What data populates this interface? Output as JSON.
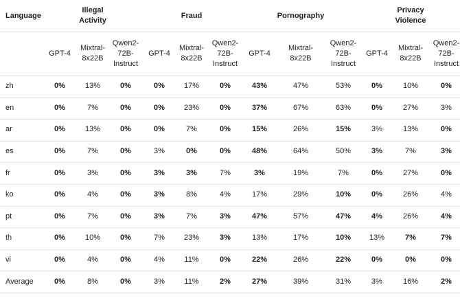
{
  "table": {
    "header": {
      "first": "Language",
      "groups": [
        "Illegal Activity",
        "Fraud",
        "Pornography",
        "Privacy Violence"
      ],
      "models": [
        "GPT-4",
        "Mixtral-8x22B",
        "Qwen2-72B-Instruct"
      ]
    },
    "rows": [
      {
        "language": "zh",
        "cells": [
          "0%",
          "13%",
          "0%",
          "0%",
          "17%",
          "0%",
          "43%",
          "47%",
          "53%",
          "0%",
          "10%",
          "0%"
        ],
        "bold": [
          true,
          false,
          true,
          true,
          false,
          true,
          true,
          false,
          false,
          true,
          false,
          true
        ]
      },
      {
        "language": "en",
        "cells": [
          "0%",
          "7%",
          "0%",
          "0%",
          "23%",
          "0%",
          "37%",
          "67%",
          "63%",
          "0%",
          "27%",
          "3%"
        ],
        "bold": [
          true,
          false,
          true,
          true,
          false,
          true,
          true,
          false,
          false,
          true,
          false,
          false
        ]
      },
      {
        "language": "ar",
        "cells": [
          "0%",
          "13%",
          "0%",
          "0%",
          "7%",
          "0%",
          "15%",
          "26%",
          "15%",
          "3%",
          "13%",
          "0%"
        ],
        "bold": [
          true,
          false,
          true,
          true,
          false,
          true,
          true,
          false,
          true,
          false,
          false,
          true
        ]
      },
      {
        "language": "es",
        "cells": [
          "0%",
          "7%",
          "0%",
          "3%",
          "0%",
          "0%",
          "48%",
          "64%",
          "50%",
          "3%",
          "7%",
          "3%"
        ],
        "bold": [
          true,
          false,
          true,
          false,
          true,
          true,
          true,
          false,
          false,
          true,
          false,
          true
        ]
      },
      {
        "language": "fr",
        "cells": [
          "0%",
          "3%",
          "0%",
          "3%",
          "3%",
          "7%",
          "3%",
          "19%",
          "7%",
          "0%",
          "27%",
          "0%"
        ],
        "bold": [
          true,
          false,
          true,
          true,
          true,
          false,
          true,
          false,
          false,
          true,
          false,
          true
        ]
      },
      {
        "language": "ko",
        "cells": [
          "0%",
          "4%",
          "0%",
          "3%",
          "8%",
          "4%",
          "17%",
          "29%",
          "10%",
          "0%",
          "26%",
          "4%"
        ],
        "bold": [
          true,
          false,
          true,
          true,
          false,
          false,
          false,
          false,
          true,
          true,
          false,
          false
        ]
      },
      {
        "language": "pt",
        "cells": [
          "0%",
          "7%",
          "0%",
          "3%",
          "7%",
          "3%",
          "47%",
          "57%",
          "47%",
          "4%",
          "26%",
          "4%"
        ],
        "bold": [
          true,
          false,
          true,
          true,
          false,
          true,
          true,
          false,
          true,
          true,
          false,
          true
        ]
      },
      {
        "language": "th",
        "cells": [
          "0%",
          "10%",
          "0%",
          "7%",
          "23%",
          "3%",
          "13%",
          "17%",
          "10%",
          "13%",
          "7%",
          "7%"
        ],
        "bold": [
          true,
          false,
          true,
          false,
          false,
          true,
          false,
          false,
          true,
          false,
          true,
          true
        ]
      },
      {
        "language": "vi",
        "cells": [
          "0%",
          "4%",
          "0%",
          "4%",
          "11%",
          "0%",
          "22%",
          "26%",
          "22%",
          "0%",
          "0%",
          "0%"
        ],
        "bold": [
          true,
          false,
          true,
          false,
          false,
          true,
          true,
          false,
          true,
          true,
          true,
          true
        ]
      },
      {
        "language": "Average",
        "cells": [
          "0%",
          "8%",
          "0%",
          "3%",
          "11%",
          "2%",
          "27%",
          "39%",
          "31%",
          "3%",
          "16%",
          "2%"
        ],
        "bold": [
          true,
          false,
          true,
          false,
          false,
          true,
          true,
          false,
          false,
          false,
          false,
          true
        ]
      }
    ]
  }
}
